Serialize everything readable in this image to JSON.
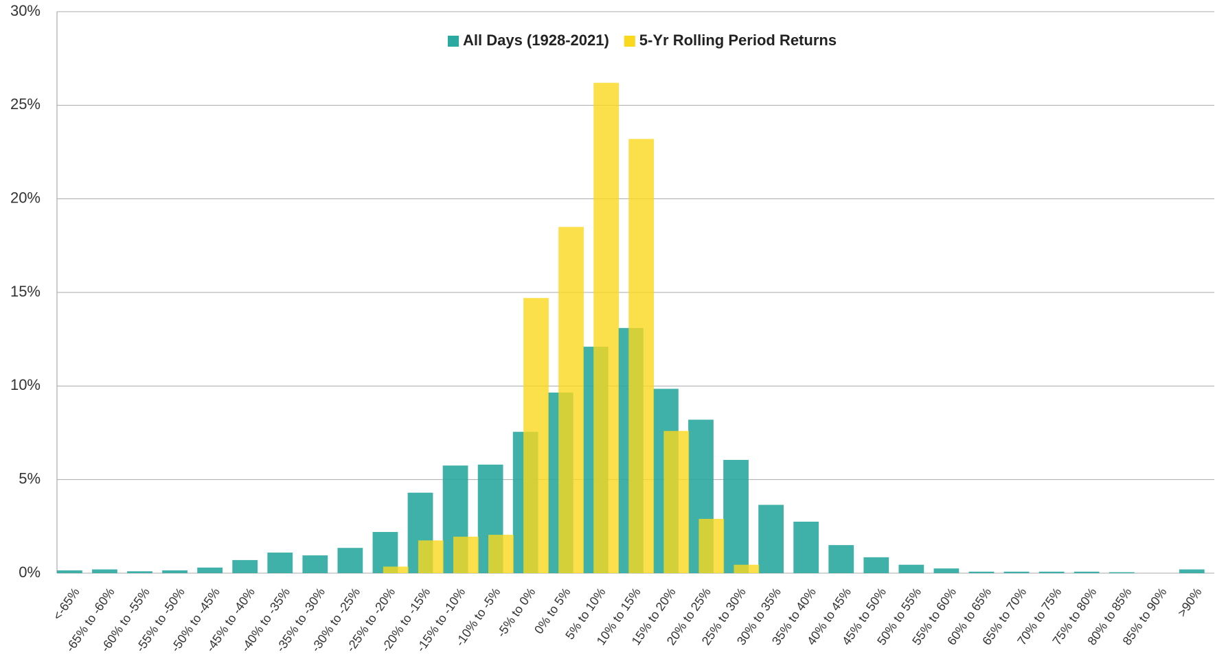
{
  "chart_data": {
    "type": "bar",
    "categories": [
      "<-65%",
      "-65% to -60%",
      "-60% to -55%",
      "-55% to -50%",
      "-50% to -45%",
      "-45% to -40%",
      "-40% to -35%",
      "-35% to -30%",
      "-30% to -25%",
      "-25% to -20%",
      "-20% to -15%",
      "-15% to -10%",
      "-10% to -5%",
      "-5% to 0%",
      "0% to 5%",
      "5% to 10%",
      "10% to 15%",
      "15% to 20%",
      "20% to 25%",
      "25% to 30%",
      "30% to 35%",
      "35% to 40%",
      "40% to 45%",
      "45% to 50%",
      "50% to 55%",
      "55% to 60%",
      "60% to 65%",
      "65% to 70%",
      "70% to 75%",
      "75% to 80%",
      "80% to 85%",
      "85% to 90%",
      ">90%"
    ],
    "series": [
      {
        "name": "All Days (1928-2021)",
        "color": "#2aa9a0",
        "values": [
          0.15,
          0.2,
          0.1,
          0.15,
          0.3,
          0.7,
          1.1,
          0.95,
          1.35,
          2.2,
          4.3,
          5.75,
          5.8,
          7.55,
          9.65,
          12.1,
          13.1,
          9.85,
          8.2,
          6.05,
          3.65,
          2.75,
          1.5,
          0.85,
          0.45,
          0.25,
          0.08,
          0.08,
          0.08,
          0.08,
          0.05,
          0,
          0.2
        ]
      },
      {
        "name": "5-Yr Rolling Period Returns",
        "color": "#fad81e",
        "values": [
          0,
          0,
          0,
          0,
          0,
          0,
          0,
          0,
          0,
          0.35,
          1.75,
          1.95,
          2.05,
          14.7,
          18.5,
          26.2,
          23.2,
          7.6,
          2.9,
          0.45,
          0,
          0,
          0,
          0,
          0,
          0,
          0,
          0,
          0,
          0,
          0,
          0,
          0
        ]
      }
    ],
    "ylim": [
      0,
      30
    ],
    "yticks": [
      {
        "value": 0,
        "label": "0%"
      },
      {
        "value": 5,
        "label": "5%"
      },
      {
        "value": 10,
        "label": "10%"
      },
      {
        "value": 15,
        "label": "15%"
      },
      {
        "value": 20,
        "label": "20%"
      },
      {
        "value": 25,
        "label": "25%"
      },
      {
        "value": 30,
        "label": "30%"
      }
    ],
    "grid": true,
    "legend": "top"
  }
}
